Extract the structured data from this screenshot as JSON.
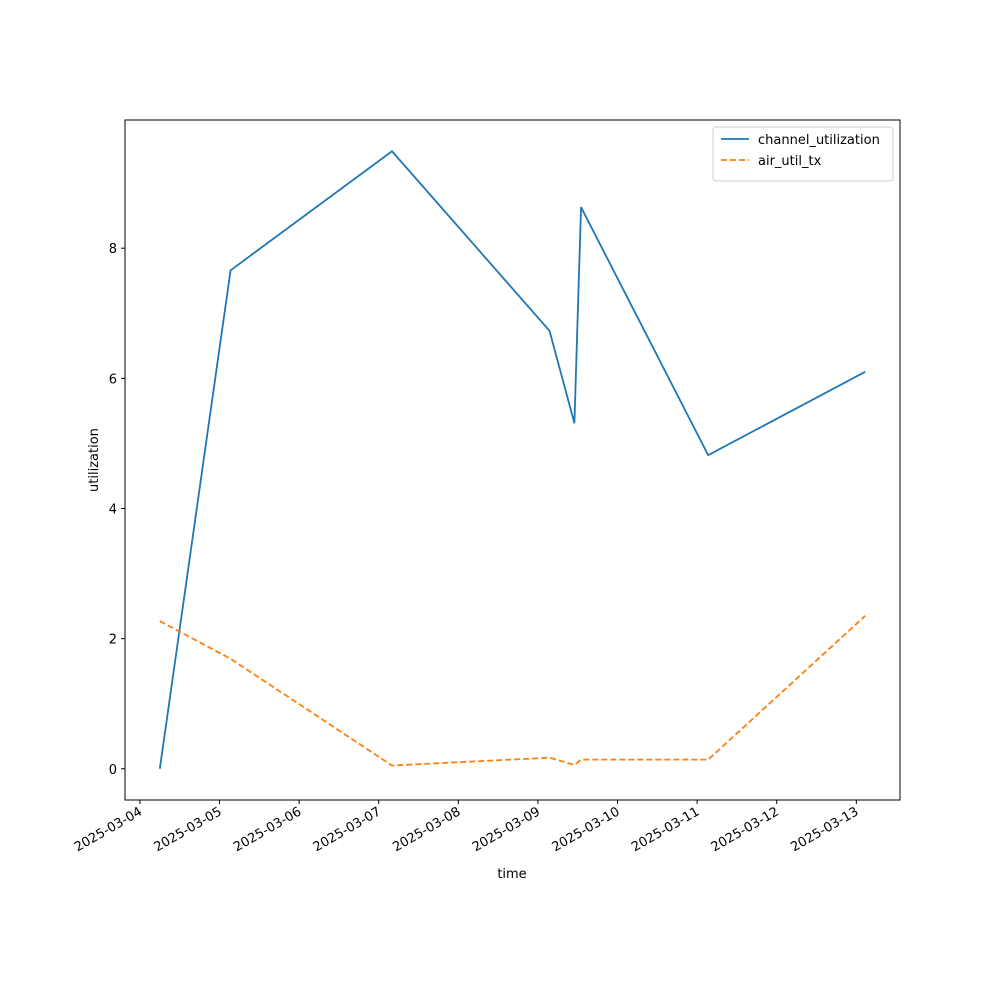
{
  "chart_data": {
    "type": "line",
    "x_label": "time",
    "y_label": "utilization",
    "x": [
      "2025-03-04T06:00",
      "2025-03-05T03:20",
      "2025-03-07T04:00",
      "2025-03-09T03:30",
      "2025-03-09T11:00",
      "2025-03-09T13:00",
      "2025-03-11T03:20",
      "2025-03-13T02:40"
    ],
    "series": [
      {
        "name": "channel_utilization",
        "color": "#1f77b4",
        "dash": false,
        "values": [
          0,
          7.66,
          9.49,
          6.73,
          5.31,
          8.63,
          4.82,
          6.1
        ]
      },
      {
        "name": "air_util_tx",
        "color": "#ff7f0e",
        "dash": true,
        "values": [
          2.27,
          1.69,
          0.05,
          0.17,
          0.06,
          0.14,
          0.14,
          2.35
        ]
      }
    ],
    "xlim": [
      "2025-03-03T19:30",
      "2025-03-13T13:10"
    ],
    "xticks": [
      "2025-03-04",
      "2025-03-05",
      "2025-03-06",
      "2025-03-07",
      "2025-03-08",
      "2025-03-09",
      "2025-03-10",
      "2025-03-11",
      "2025-03-12",
      "2025-03-13"
    ],
    "ylim": [
      -0.48,
      9.97
    ],
    "yticks": [
      0,
      2,
      4,
      6,
      8
    ],
    "grid": false,
    "legend": "upper right"
  }
}
